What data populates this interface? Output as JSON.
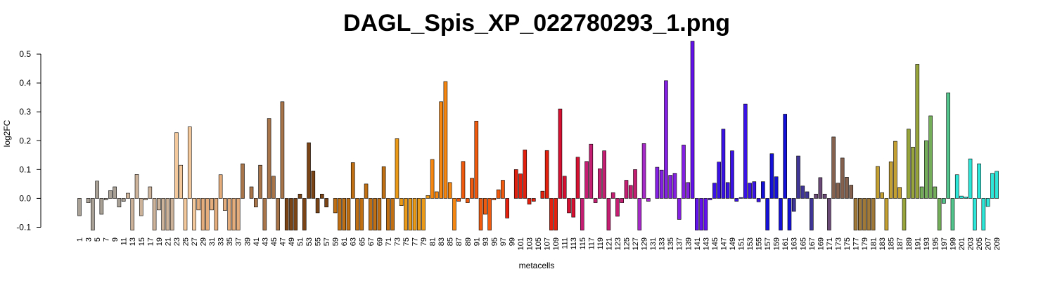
{
  "chart_data": {
    "type": "bar",
    "title": "DAGL_Spis_XP_022780293_1.png",
    "x_label": "metacells",
    "y_label": "log2FC",
    "categories": [
      1,
      null,
      3,
      null,
      5,
      null,
      7,
      null,
      9,
      null,
      11,
      null,
      13,
      null,
      15,
      null,
      17,
      null,
      19,
      null,
      21,
      null,
      23,
      null,
      25,
      null,
      27,
      null,
      29,
      null,
      31,
      null,
      33,
      null,
      35,
      null,
      37,
      null,
      39,
      null,
      41,
      null,
      43,
      null,
      45,
      null,
      47,
      null,
      49,
      null,
      51,
      null,
      53,
      null,
      55,
      null,
      57,
      null,
      59,
      null,
      61,
      null,
      63,
      null,
      65,
      null,
      67,
      null,
      69,
      null,
      71,
      null,
      73,
      null,
      75,
      null,
      77,
      null,
      79,
      null,
      81,
      null,
      83,
      null,
      85,
      null,
      87,
      null,
      89,
      null,
      91,
      null,
      93,
      null,
      95,
      null,
      97,
      null,
      99,
      null,
      101,
      null,
      103,
      null,
      105,
      null,
      107,
      null,
      109,
      null,
      111,
      null,
      113,
      null,
      115,
      null,
      117,
      null,
      119,
      null,
      121,
      null,
      123,
      null,
      125,
      null,
      127,
      null,
      129,
      null,
      131,
      null,
      133,
      null,
      135,
      null,
      137,
      null,
      139,
      null,
      141,
      null,
      143,
      null,
      145,
      null,
      147,
      null,
      149,
      null,
      151,
      null,
      153,
      null,
      155,
      null,
      157,
      null,
      159,
      null,
      161,
      null,
      163,
      null,
      165,
      null,
      167,
      null,
      169,
      null,
      171,
      null,
      173,
      null,
      175,
      null,
      177,
      null,
      179,
      null,
      181,
      null,
      183,
      null,
      185,
      null,
      187,
      null,
      189,
      null,
      191,
      null,
      193,
      null,
      195,
      null,
      197,
      null,
      199,
      null,
      201,
      null,
      203,
      null,
      205,
      null,
      207,
      null,
      209
    ],
    "values": [
      -0.06,
      0,
      -0.015,
      -0.11,
      0.06,
      -0.055,
      -0.005,
      0.027,
      0.04,
      -0.03,
      -0.01,
      0.018,
      -0.11,
      0.083,
      -0.06,
      -0.005,
      0.04,
      -0.11,
      -0.04,
      -0.11,
      -0.11,
      -0.11,
      0.228,
      0.115,
      -0.11,
      0.248,
      -0.11,
      -0.04,
      -0.11,
      -0.11,
      -0.04,
      -0.11,
      0.082,
      -0.042,
      -0.11,
      -0.11,
      -0.11,
      0.12,
      0,
      0.04,
      -0.03,
      0.115,
      -0.11,
      0.277,
      0.077,
      -0.11,
      0.335,
      -0.11,
      -0.11,
      -0.11,
      0.015,
      -0.11,
      0.193,
      0.095,
      -0.05,
      0.015,
      -0.03,
      0,
      -0.05,
      -0.11,
      -0.11,
      -0.11,
      0.124,
      -0.11,
      -0.11,
      0.05,
      -0.11,
      -0.11,
      -0.11,
      0.11,
      -0.11,
      -0.11,
      0.207,
      -0.025,
      -0.11,
      -0.11,
      -0.11,
      -0.11,
      -0.11,
      0.01,
      0.135,
      0.023,
      0.335,
      0.405,
      0.055,
      -0.11,
      -0.01,
      0.128,
      -0.015,
      0.07,
      0.268,
      -0.11,
      -0.055,
      -0.11,
      -0.005,
      0.03,
      0.063,
      -0.068,
      0,
      0.1,
      0.085,
      0.168,
      -0.02,
      -0.01,
      0,
      0.025,
      0.166,
      -0.11,
      -0.11,
      0.31,
      0.077,
      -0.05,
      -0.065,
      0.143,
      -0.11,
      0.128,
      0.188,
      -0.015,
      0.103,
      0.165,
      -0.11,
      0.02,
      -0.062,
      -0.015,
      0.063,
      0.045,
      0.1,
      -0.11,
      0.19,
      -0.01,
      0,
      0.108,
      0.098,
      0.408,
      0.08,
      0.087,
      -0.073,
      0.185,
      0.055,
      0.545,
      -0.11,
      -0.11,
      -0.11,
      -0.005,
      0.053,
      0.126,
      0.24,
      0.055,
      0.165,
      -0.01,
      0.003,
      0.327,
      0.053,
      0.058,
      -0.012,
      0.058,
      -0.11,
      0.155,
      0.075,
      -0.11,
      0.292,
      -0.11,
      -0.045,
      0.147,
      0.043,
      0.023,
      -0.11,
      0.015,
      0.072,
      0.015,
      -0.11,
      0.213,
      0.053,
      0.14,
      0.073,
      0.046,
      -0.11,
      -0.11,
      -0.11,
      -0.11,
      -0.11,
      0.111,
      0.02,
      -0.11,
      0.127,
      0.198,
      0.038,
      -0.11,
      0.24,
      0.178,
      0.465,
      0.04,
      0.2,
      0.286,
      0.04,
      -0.11,
      -0.017,
      0.366,
      -0.11,
      0.082,
      0.008,
      0.005,
      0.137,
      -0.11,
      0.12,
      -0.11,
      -0.028,
      0.087,
      0.094
    ],
    "colors": [
      "#a9a196",
      "#a9a196",
      "#a9a196",
      "#a9a196",
      "#a9a196",
      "#a9a196",
      "#a9a196",
      "#a9a196",
      "#a9a196",
      "#a9a196",
      "#a9a196",
      "#cdb39a",
      "#cdb39a",
      "#cdb39a",
      "#cdb39a",
      "#cdb39a",
      "#cdb39a",
      "#cdb39a",
      "#cdb39a",
      "#cdb39a",
      "#cdb39a",
      "#cdb39a",
      "#f4c99b",
      "#f4c99b",
      "#f4c99b",
      "#f4c99b",
      "#f4c99b",
      "#e5ad7c",
      "#e5ad7c",
      "#e5ad7c",
      "#e5ad7c",
      "#e5ad7c",
      "#e5ad7c",
      "#e5ad7c",
      "#e5ad7c",
      "#e5ad7c",
      "#e5ad7c",
      "#a8744a",
      "#a8744a",
      "#a8744a",
      "#a8744a",
      "#a8744a",
      "#a8744a",
      "#a8744a",
      "#a8744a",
      "#a8744a",
      "#a8744a",
      "#7b4416",
      "#7b4416",
      "#7b4416",
      "#7b4416",
      "#7b4416",
      "#7b4416",
      "#7b4416",
      "#7b4416",
      "#7b4416",
      "#7b4416",
      "#c06f12",
      "#c06f12",
      "#c06f12",
      "#c06f12",
      "#c06f12",
      "#c06f12",
      "#c06f12",
      "#c06f12",
      "#c06f12",
      "#c06f12",
      "#c06f12",
      "#c06f12",
      "#c06f12",
      "#c06f12",
      "#c06f12",
      "#eb9a17",
      "#eb9a17",
      "#eb9a17",
      "#eb9a17",
      "#eb9a17",
      "#eb9a17",
      "#eb9a17",
      "#eb9a17",
      "#f5860f",
      "#f5860f",
      "#f5860f",
      "#f5860f",
      "#f5860f",
      "#f5860f",
      "#f05a0e",
      "#f05a0e",
      "#f05a0e",
      "#f05a0e",
      "#f05a0e",
      "#f05a0e",
      "#f05a0e",
      "#f05a0e",
      "#f05a0e",
      "#f05a0e",
      "#f05a0e",
      "#e3200e",
      "#e3200e",
      "#e3200e",
      "#e3200e",
      "#e3200e",
      "#e3200e",
      "#e3200e",
      "#e3200e",
      "#e3200e",
      "#e3200e",
      "#e3200e",
      "#e3200e",
      "#d51030",
      "#d51030",
      "#d51030",
      "#d51030",
      "#d51030",
      "#c41e72",
      "#c41e72",
      "#c41e72",
      "#c41e72",
      "#c41e72",
      "#c41e72",
      "#c41e72",
      "#c41e72",
      "#c41e72",
      "#c41e72",
      "#c41e72",
      "#c41e72",
      "#c41e72",
      "#a52ac8",
      "#a52ac8",
      "#a52ac8",
      "#a52ac8",
      "#8420e2",
      "#8420e2",
      "#8420e2",
      "#8420e2",
      "#8420e2",
      "#8420e2",
      "#8420e2",
      "#8420e2",
      "#6412ea",
      "#6412ea",
      "#6412ea",
      "#6412ea",
      "#6412ea",
      "#3a12e6",
      "#3a12e6",
      "#3a12e6",
      "#3a12e6",
      "#3a12e6",
      "#3a12e6",
      "#3a12e6",
      "#3a12e6",
      "#3a12e6",
      "#3a12e6",
      "#3a12e6",
      "#1410d8",
      "#1410d8",
      "#1410d8",
      "#1410d8",
      "#1410d8",
      "#1410d8",
      "#1410d8",
      "#3f3596",
      "#3f3596",
      "#3f3596",
      "#3f3596",
      "#3f3596",
      "#6c4a78",
      "#6c4a78",
      "#6c4a78",
      "#6c4a78",
      "#84604e",
      "#84604e",
      "#84604e",
      "#84604e",
      "#84604e",
      "#a07838",
      "#a07838",
      "#a07838",
      "#a07838",
      "#a07838",
      "#c4a032",
      "#c4a032",
      "#c4a032",
      "#c4a032",
      "#c4a032",
      "#c4a032",
      "#98a43c",
      "#98a43c",
      "#98a43c",
      "#98a43c",
      "#74ae5a",
      "#74ae5a",
      "#74ae5a",
      "#74ae5a",
      "#74ae5a",
      "#52c48c",
      "#52c48c",
      "#52c48c",
      "#2de8d8",
      "#2de8d8",
      "#2de8d8",
      "#2de8d8",
      "#2de8d8",
      "#2de8d8",
      "#2de8d8",
      "#2de8d8",
      "#2de8d8",
      "#2de8d8"
    ],
    "ylim": [
      -0.11,
      0.55
    ],
    "yticks": [
      -0.1,
      {
        "value": 0,
        "label": "0.0"
      },
      0.1,
      0.2,
      0.3,
      0.4,
      0.5
    ]
  }
}
